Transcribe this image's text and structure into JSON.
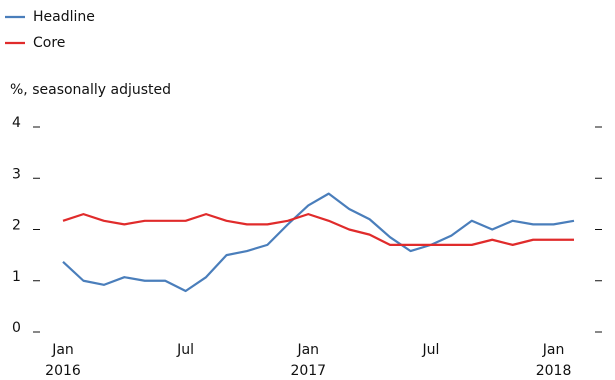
{
  "chart_data": {
    "type": "line",
    "y_label": "%, seasonally adjusted",
    "categories": [
      [
        "Jan",
        "2016"
      ],
      null,
      null,
      null,
      null,
      null,
      [
        "Jul"
      ],
      null,
      null,
      null,
      null,
      null,
      [
        "Jan",
        "2017"
      ],
      null,
      null,
      null,
      null,
      null,
      [
        "Jul"
      ],
      null,
      null,
      null,
      null,
      null,
      [
        "Jan",
        "2018"
      ],
      null
    ],
    "series": [
      {
        "name": "Headline",
        "color": "#4a7ebb",
        "values": [
          1.37,
          1.0,
          0.92,
          1.07,
          1.0,
          1.0,
          0.8,
          1.07,
          1.5,
          1.58,
          1.7,
          2.1,
          2.47,
          2.7,
          2.4,
          2.2,
          1.85,
          1.58,
          1.7,
          1.88,
          2.17,
          2.0,
          2.17,
          2.1,
          2.1,
          2.17
        ]
      },
      {
        "name": "Core",
        "color": "#e02b2b",
        "values": [
          2.17,
          2.3,
          2.17,
          2.1,
          2.17,
          2.17,
          2.17,
          2.3,
          2.17,
          2.1,
          2.1,
          2.17,
          2.3,
          2.17,
          2.0,
          1.9,
          1.7,
          1.7,
          1.7,
          1.7,
          1.7,
          1.8,
          1.7,
          1.8,
          1.8,
          1.8
        ]
      }
    ],
    "ylim": [
      0,
      4
    ],
    "yticks": [
      0,
      1,
      2,
      3,
      4
    ],
    "legend": "top-left"
  }
}
